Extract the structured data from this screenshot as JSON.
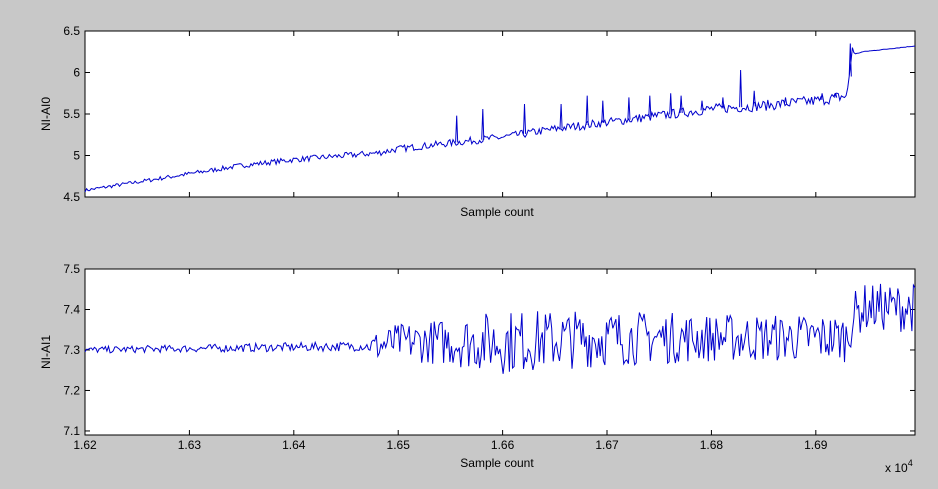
{
  "figure": {
    "background": "#c8c8c8",
    "line_color": "#0000cc",
    "axes_bg": "#ffffff"
  },
  "chart_data": [
    {
      "type": "line",
      "id": "top",
      "ylabel": "NI-AI0",
      "xlabel": "Sample count",
      "xlim": [
        16200,
        16995
      ],
      "ylim": [
        4.5,
        6.5
      ],
      "yticks": [
        4.5,
        5,
        5.5,
        6,
        6.5
      ],
      "ytick_labels": [
        "4.5",
        "5",
        "5.5",
        "6",
        "6.5"
      ],
      "xticks": [
        16200,
        16300,
        16400,
        16500,
        16600,
        16700,
        16800,
        16900
      ],
      "xtick_labels": [],
      "series": [
        {
          "name": "NI-AI0",
          "points": [
            [
              16200,
              4.58
            ],
            [
              16250,
              4.68
            ],
            [
              16300,
              4.78
            ],
            [
              16350,
              4.88
            ],
            [
              16400,
              4.95
            ],
            [
              16450,
              5.0
            ],
            [
              16480,
              5.03
            ],
            [
              16500,
              5.08
            ],
            [
              16550,
              5.15
            ],
            [
              16600,
              5.22
            ],
            [
              16650,
              5.32
            ],
            [
              16700,
              5.4
            ],
            [
              16750,
              5.48
            ],
            [
              16800,
              5.56
            ],
            [
              16850,
              5.6
            ],
            [
              16900,
              5.66
            ],
            [
              16930,
              5.72
            ],
            [
              16935,
              6.3
            ],
            [
              16937,
              6.22
            ],
            [
              16945,
              6.25
            ],
            [
              16995,
              6.32
            ]
          ],
          "spikes": [
            [
              16555,
              5.48
            ],
            [
              16580,
              5.56
            ],
            [
              16620,
              5.62
            ],
            [
              16655,
              5.62
            ],
            [
              16680,
              5.72
            ],
            [
              16695,
              5.66
            ],
            [
              16720,
              5.7
            ],
            [
              16740,
              5.72
            ],
            [
              16760,
              5.75
            ],
            [
              16770,
              5.72
            ],
            [
              16790,
              5.66
            ],
            [
              16810,
              5.7
            ],
            [
              16827,
              6.03
            ],
            [
              16840,
              5.78
            ],
            [
              16870,
              5.7
            ],
            [
              16905,
              5.75
            ],
            [
              16918,
              5.75
            ],
            [
              16932,
              6.35
            ]
          ]
        }
      ]
    },
    {
      "type": "line",
      "id": "bottom",
      "ylabel": "NI-AI1",
      "xlabel": "Sample count",
      "xlim": [
        16200,
        16995
      ],
      "ylim": [
        7.09,
        7.5
      ],
      "yticks": [
        7.1,
        7.2,
        7.3,
        7.4,
        7.5
      ],
      "ytick_labels": [
        "7.1",
        "7.2",
        "7.3",
        "7.4",
        "7.5"
      ],
      "xticks": [
        16200,
        16300,
        16400,
        16500,
        16600,
        16700,
        16800,
        16900
      ],
      "xtick_labels": [
        "1.62",
        "1.63",
        "1.64",
        "1.65",
        "1.66",
        "1.67",
        "1.68",
        "1.69"
      ],
      "multiplier": "x 10",
      "multiplier_exp": "4",
      "series": [
        {
          "name": "NI-AI1",
          "points": [
            [
              16200,
              7.3
            ],
            [
              16480,
              7.31
            ],
            [
              16500,
              7.32
            ],
            [
              16600,
              7.32
            ],
            [
              16700,
              7.33
            ],
            [
              16800,
              7.33
            ],
            [
              16930,
              7.33
            ],
            [
              16935,
              7.38
            ],
            [
              16945,
              7.405
            ],
            [
              16995,
              7.405
            ]
          ],
          "noise": [
            [
              16200,
              0.008
            ],
            [
              16470,
              0.012
            ],
            [
              16480,
              0.04
            ],
            [
              16550,
              0.06
            ],
            [
              16600,
              0.08
            ],
            [
              16800,
              0.06
            ],
            [
              16930,
              0.06
            ]
          ]
        }
      ]
    }
  ]
}
